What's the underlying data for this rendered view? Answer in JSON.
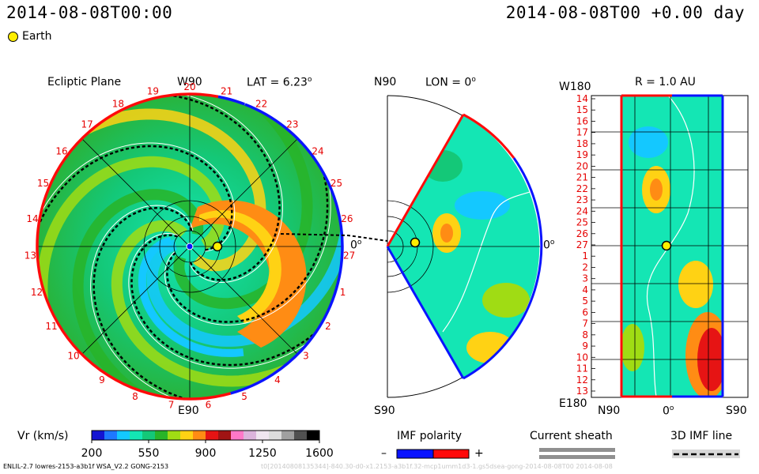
{
  "header": {
    "time": "2014-08-08T00:00",
    "offset": "2014-08-08T00 +0.00 day",
    "earth_label": "Earth"
  },
  "panels": {
    "ecliptic": {
      "title": "Ecliptic Plane",
      "top": "W90",
      "bottom": "E90",
      "right": "0",
      "lat": "LAT = 6.23",
      "sup": "o"
    },
    "meridional": {
      "top": "N90",
      "bottom": "S90",
      "right": "0",
      "lon": "LON = 0",
      "sup": "o"
    },
    "rsurface": {
      "r": "R = 1.0 AU",
      "top": "W180",
      "bottom": "E180",
      "x_left": "N90",
      "x_mid": "0",
      "x_right": "S90",
      "sup": "o"
    }
  },
  "legend": {
    "vr_label": "Vr (km/s)",
    "imf_label": "IMF polarity",
    "sheath_label": "Current sheath",
    "imf3d_label": "3D IMF line",
    "minus": "–",
    "plus": "+"
  },
  "footer": {
    "text": "ENLIL-2.7 lowres-2153-a3b1f WSA_V2.2 GONG-2153",
    "faint": "t0[20140808135344]-840.30-d0-x1.2153-a3b1f.32-mcp1umm1d3-1.gs5dsea-gong-2014-08-08T00 2014-08-08"
  },
  "chart_data": {
    "type": "heatmap",
    "quantity": "Vr (km/s)",
    "colorbar": {
      "ticks": [
        200,
        550,
        900,
        1250,
        1600
      ],
      "range": [
        200,
        1600
      ],
      "colors": [
        "#1414d2",
        "#1e78ff",
        "#14c8ff",
        "#14e6b4",
        "#14c878",
        "#28b428",
        "#a0dc14",
        "#ffd214",
        "#ff8c14",
        "#e61414",
        "#a01414",
        "#ff78c8",
        "#dcb4dc",
        "#f0e6f0",
        "#dcdcdc",
        "#a0a0a0",
        "#505050",
        "#000000"
      ]
    },
    "carrington_labels": [
      "20",
      "21",
      "22",
      "23",
      "24",
      "25",
      "26",
      "27",
      "1",
      "2",
      "3",
      "4",
      "5",
      "6",
      "7",
      "8",
      "9",
      "10",
      "11",
      "12",
      "13",
      "14",
      "15",
      "16",
      "17",
      "18",
      "19"
    ],
    "rsurface_rows": [
      "14",
      "15",
      "16",
      "17",
      "18",
      "19",
      "20",
      "21",
      "22",
      "23",
      "24",
      "25",
      "26",
      "27",
      "1",
      "2",
      "3",
      "4",
      "5",
      "6",
      "7",
      "8",
      "9",
      "10",
      "11",
      "12",
      "13"
    ],
    "imf_polarity": [
      "negative",
      "positive"
    ],
    "imf_colors": [
      "#0a14ff",
      "#ff0a0a"
    ],
    "earth": {
      "lon": "0",
      "r_au": 1.0
    },
    "meridional_span_deg": [
      -60,
      60
    ]
  }
}
